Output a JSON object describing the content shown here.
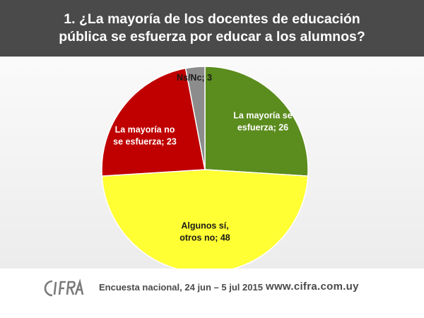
{
  "header": {
    "title_line1": "1. ¿La mayoría de los docentes de educación",
    "title_line2": "pública se esfuerza por educar a los alumnos?"
  },
  "chart_data": {
    "type": "pie",
    "title": "1. ¿La mayoría de los docentes de educación pública se esfuerza por educar a los alumnos?",
    "slices": [
      {
        "label_lines": [
          "La mayoría se",
          "esfuerza; 26"
        ],
        "value": 26,
        "color": "#5b8c1e",
        "label_color": "#ffffff"
      },
      {
        "label_lines": [
          "Algunos sí,",
          "otros no; 48"
        ],
        "value": 48,
        "color": "#ffff33",
        "label_color": "#1a1a1a"
      },
      {
        "label_lines": [
          "La mayoría no",
          "se esfuerza; 23"
        ],
        "value": 23,
        "color": "#c00000",
        "label_color": "#ffffff"
      },
      {
        "label_lines": [
          "Ns/Nc; 3"
        ],
        "value": 3,
        "color": "#8c8c8c",
        "label_color": "#1a1a1a"
      }
    ],
    "start_angle_deg": 0,
    "direction": "clockwise",
    "legend": "none"
  },
  "footer": {
    "logo_text": "CIFRA",
    "survey_text": "Encuesta nacional,  24 jun – 5 jul 2015",
    "url": "www.cifra.com.uy",
    "text_color": "#4a4a4a"
  }
}
